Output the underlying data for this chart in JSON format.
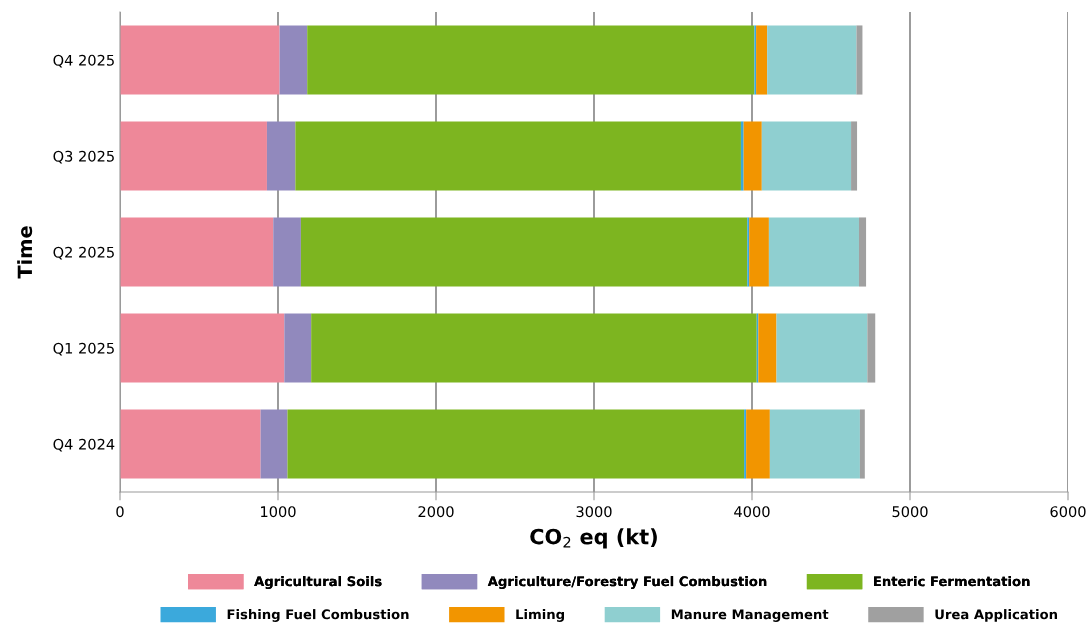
{
  "chart_data": {
    "type": "bar",
    "orientation": "horizontal",
    "stacked": true,
    "xlabel": "CO$_{2}$ eq (kt)",
    "ylabel": "Time",
    "categories": [
      "Q4 2025",
      "Q3 2025",
      "Q2 2025",
      "Q1 2025",
      "Q4 2024"
    ],
    "series": [
      {
        "name": "Agricultural Soils",
        "color": "#ee8899",
        "values": [
          1010,
          930,
          970,
          1040,
          890
        ]
      },
      {
        "name": "Agriculture/Forestry Fuel Combustion",
        "color": "#9189bd",
        "values": [
          175,
          180,
          175,
          170,
          170
        ]
      },
      {
        "name": "Enteric Fermentation",
        "color": "#7db520",
        "values": [
          2830,
          2820,
          2825,
          2820,
          2890
        ]
      },
      {
        "name": "Fishing Fuel Combustion",
        "color": "#3ba9dc",
        "values": [
          11,
          17,
          12,
          10,
          13
        ]
      },
      {
        "name": "Liming",
        "color": "#f29500",
        "values": [
          70,
          115,
          125,
          115,
          150
        ]
      },
      {
        "name": "Manure Management",
        "color": "#8fcfd0",
        "values": [
          565,
          565,
          570,
          575,
          570
        ]
      },
      {
        "name": "Urea Application",
        "color": "#a0a0a0",
        "values": [
          38,
          38,
          45,
          50,
          31
        ]
      }
    ],
    "xlim": [
      0,
      6000
    ],
    "xticks": [
      0,
      1000,
      2000,
      3000,
      4000,
      5000,
      6000
    ],
    "grid": "x",
    "legend": "bottom"
  }
}
